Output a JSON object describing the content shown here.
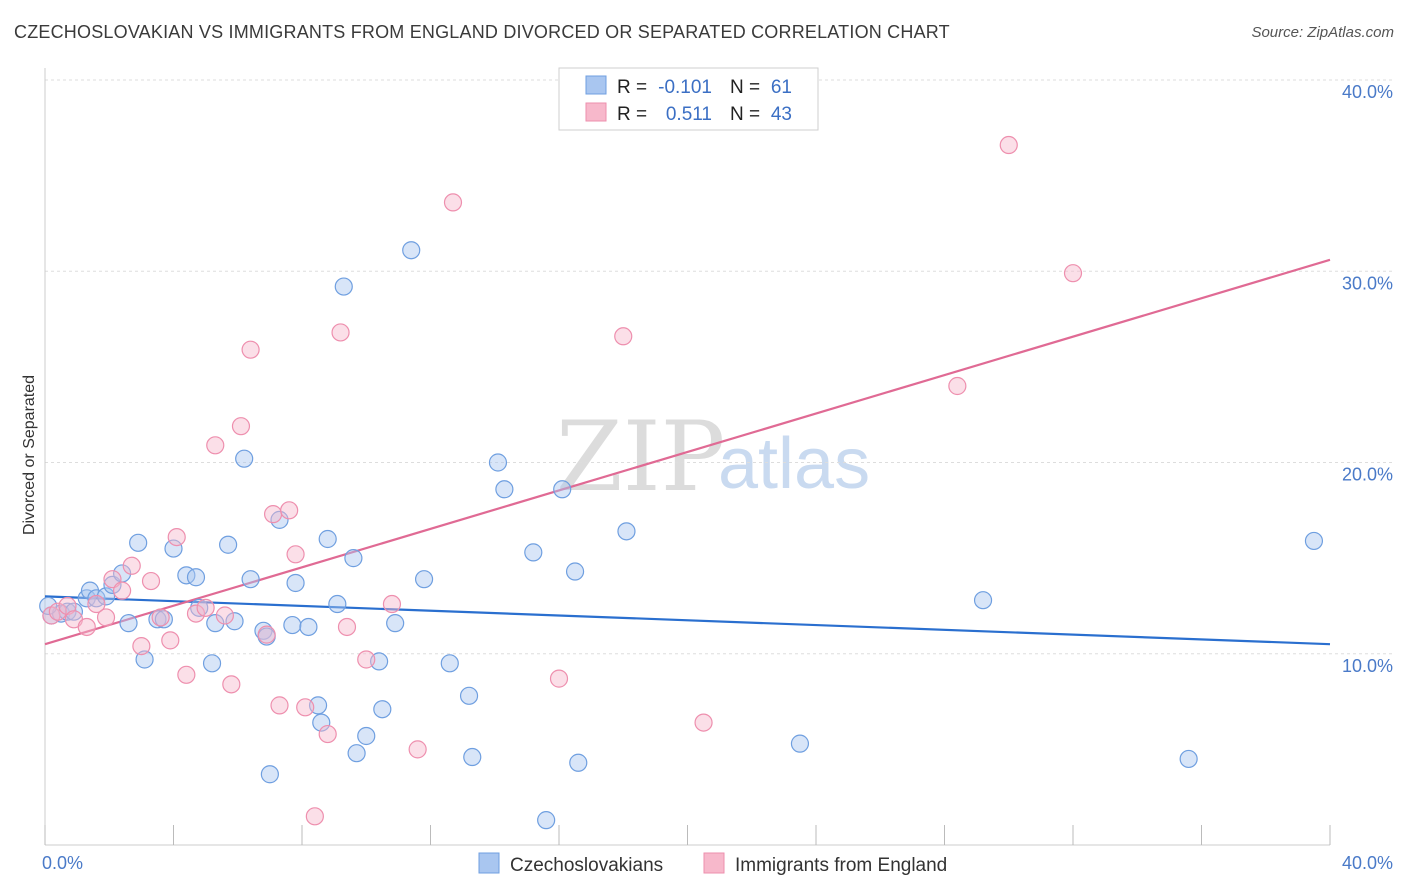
{
  "header": {
    "title": "CZECHOSLOVAKIAN VS IMMIGRANTS FROM ENGLAND DIVORCED OR SEPARATED CORRELATION CHART",
    "source": "Source: ZipAtlas.com"
  },
  "watermark": {
    "zip": "ZIP",
    "atlas": "atlas"
  },
  "legend": {
    "rows": [
      {
        "r_label": "R =",
        "r_value": "-0.101",
        "n_label": "N =",
        "n_value": "61",
        "color": "#a9c6f0"
      },
      {
        "r_label": "R =",
        "r_value": "0.511",
        "n_label": "N =",
        "n_value": "43",
        "color": "#f7b8cb"
      }
    ]
  },
  "chart_data": {
    "type": "scatter",
    "title": "CZECHOSLOVAKIAN VS IMMIGRANTS FROM ENGLAND DIVORCED OR SEPARATED CORRELATION CHART",
    "xlabel": "",
    "ylabel": "Divorced or Separated",
    "xlim": [
      0,
      40
    ],
    "ylim": [
      0,
      40
    ],
    "x_tick_labels": [
      "0.0%",
      "40.0%"
    ],
    "y_ticks": [
      10,
      20,
      30,
      40
    ],
    "y_tick_labels": [
      "10.0%",
      "20.0%",
      "30.0%",
      "40.0%"
    ],
    "grid": "horizontal dashed",
    "legend_position": "top-center",
    "series": [
      {
        "name": "Czechoslovakians",
        "color": "#6f9fe0",
        "fill": "#a9c6f0",
        "line_color": "#2a6fcf",
        "r": -0.101,
        "n": 61,
        "trend": {
          "x0": 0,
          "y0": 13.0,
          "x1": 40,
          "y1": 10.5
        },
        "points": [
          [
            0.2,
            12.0
          ],
          [
            0.5,
            12.1
          ],
          [
            0.7,
            12.2
          ],
          [
            0.9,
            12.2
          ],
          [
            1.3,
            12.9
          ],
          [
            1.4,
            13.3
          ],
          [
            1.6,
            12.9
          ],
          [
            1.9,
            13.0
          ],
          [
            2.1,
            13.6
          ],
          [
            2.4,
            14.2
          ],
          [
            2.6,
            11.6
          ],
          [
            2.9,
            15.8
          ],
          [
            3.1,
            9.7
          ],
          [
            3.5,
            11.8
          ],
          [
            3.7,
            11.8
          ],
          [
            4.0,
            15.5
          ],
          [
            4.4,
            14.1
          ],
          [
            4.7,
            14.0
          ],
          [
            4.8,
            12.4
          ],
          [
            5.2,
            9.5
          ],
          [
            5.3,
            11.6
          ],
          [
            5.7,
            15.7
          ],
          [
            5.9,
            11.7
          ],
          [
            6.2,
            20.2
          ],
          [
            6.4,
            13.9
          ],
          [
            6.8,
            11.2
          ],
          [
            6.9,
            10.9
          ],
          [
            7.0,
            3.7
          ],
          [
            7.3,
            17.0
          ],
          [
            7.7,
            11.5
          ],
          [
            7.8,
            13.7
          ],
          [
            8.2,
            11.4
          ],
          [
            8.5,
            7.3
          ],
          [
            8.6,
            6.4
          ],
          [
            8.8,
            16.0
          ],
          [
            9.1,
            12.6
          ],
          [
            9.3,
            29.2
          ],
          [
            9.6,
            15.0
          ],
          [
            9.7,
            4.8
          ],
          [
            10.0,
            5.7
          ],
          [
            10.4,
            9.6
          ],
          [
            10.5,
            7.1
          ],
          [
            10.9,
            11.6
          ],
          [
            11.4,
            31.1
          ],
          [
            11.8,
            13.9
          ],
          [
            12.6,
            9.5
          ],
          [
            13.2,
            7.8
          ],
          [
            13.3,
            4.6
          ],
          [
            14.1,
            20.0
          ],
          [
            14.3,
            18.6
          ],
          [
            15.2,
            15.3
          ],
          [
            15.6,
            1.3
          ],
          [
            16.1,
            18.6
          ],
          [
            16.5,
            14.3
          ],
          [
            16.6,
            4.3
          ],
          [
            18.1,
            16.4
          ],
          [
            23.5,
            5.3
          ],
          [
            29.2,
            12.8
          ],
          [
            35.6,
            4.5
          ],
          [
            39.5,
            15.9
          ],
          [
            0.1,
            12.5
          ]
        ]
      },
      {
        "name": "Immigrants from England",
        "color": "#ee8fae",
        "fill": "#f7b8cb",
        "line_color": "#e06a94",
        "r": 0.511,
        "n": 43,
        "trend": {
          "x0": 0,
          "y0": 10.5,
          "x1": 40,
          "y1": 30.6
        },
        "points": [
          [
            0.2,
            12.0
          ],
          [
            0.4,
            12.2
          ],
          [
            0.7,
            12.5
          ],
          [
            0.9,
            11.8
          ],
          [
            1.3,
            11.4
          ],
          [
            1.6,
            12.6
          ],
          [
            1.9,
            11.9
          ],
          [
            2.1,
            13.9
          ],
          [
            2.4,
            13.3
          ],
          [
            2.7,
            14.6
          ],
          [
            3.0,
            10.4
          ],
          [
            3.3,
            13.8
          ],
          [
            3.6,
            11.9
          ],
          [
            3.9,
            10.7
          ],
          [
            4.1,
            16.1
          ],
          [
            4.4,
            8.9
          ],
          [
            4.7,
            12.1
          ],
          [
            5.0,
            12.4
          ],
          [
            5.3,
            20.9
          ],
          [
            5.6,
            12.0
          ],
          [
            5.8,
            8.4
          ],
          [
            6.1,
            21.9
          ],
          [
            6.4,
            25.9
          ],
          [
            6.9,
            11.0
          ],
          [
            7.1,
            17.3
          ],
          [
            7.3,
            7.3
          ],
          [
            7.6,
            17.5
          ],
          [
            7.8,
            15.2
          ],
          [
            8.1,
            7.2
          ],
          [
            8.4,
            1.5
          ],
          [
            8.8,
            5.8
          ],
          [
            9.2,
            26.8
          ],
          [
            9.4,
            11.4
          ],
          [
            10.0,
            9.7
          ],
          [
            10.8,
            12.6
          ],
          [
            11.6,
            5.0
          ],
          [
            12.7,
            33.6
          ],
          [
            16.0,
            8.7
          ],
          [
            18.0,
            26.6
          ],
          [
            20.5,
            6.4
          ],
          [
            28.4,
            24.0
          ],
          [
            30.0,
            36.6
          ],
          [
            32.0,
            29.9
          ]
        ]
      }
    ]
  }
}
